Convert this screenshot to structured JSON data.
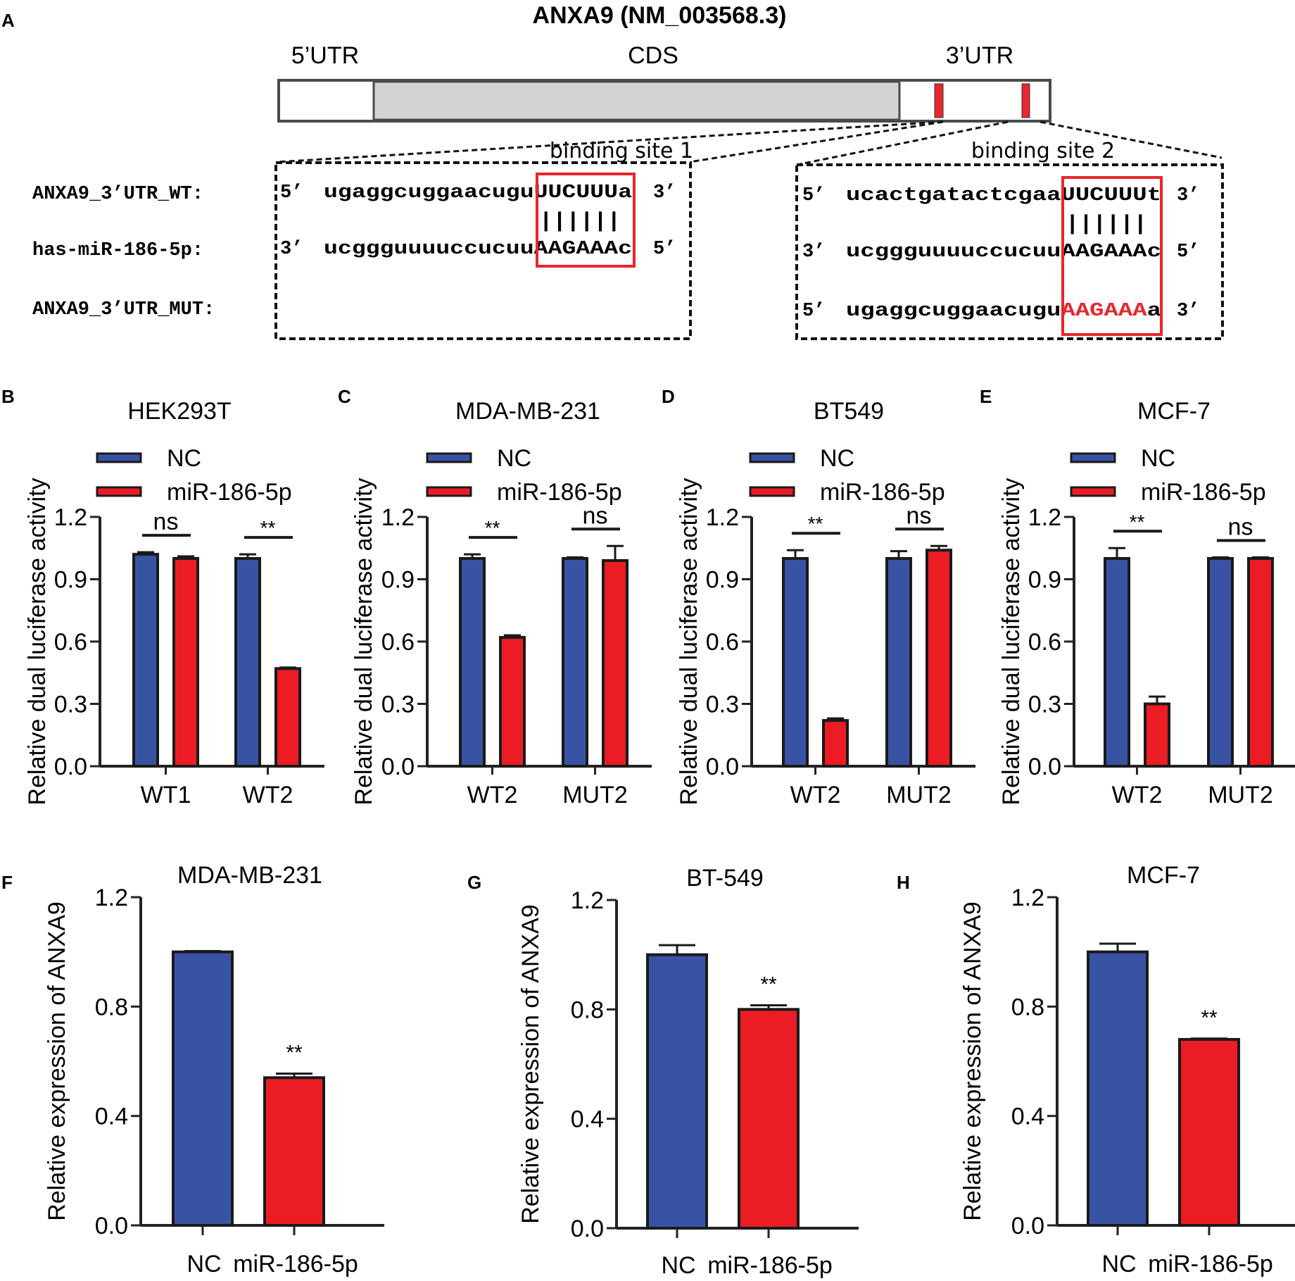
{
  "colors": {
    "nc": "#3953a4",
    "mir": "#ec1c24",
    "cds": "#d3d3d3",
    "highlight": "#e8262d"
  },
  "panel_a": {
    "letter": "A",
    "title": "ANXA9 (NM_003568.3)",
    "labels": {
      "utr5": "5’UTR",
      "cds": "CDS",
      "utr3": "3’UTR"
    },
    "site1_label": "binding site 1",
    "site2_label": "binding site 2",
    "row_labels": [
      "ANXA9_3’UTR_WT:",
      "has-miR-186-5p:",
      "ANXA9_3’UTR_MUT:"
    ],
    "site1": {
      "wt_seq": {
        "p5": "5’",
        "pre": "ugaggcuggaacugu",
        "core": "UUCUUU",
        "post": "a",
        "p3": "3’"
      },
      "pairs": "||||||",
      "mir_seq": {
        "p5": "3’",
        "pre": "ucggguuuuccucuu",
        "core": "AAGAAA",
        "post": "c",
        "p3": "5’"
      }
    },
    "site2": {
      "wt_seq": {
        "p5": "5’",
        "pre": "ucactgatactcgaa",
        "core": "UUCUUU",
        "post": "t",
        "p3": "3’"
      },
      "pairs": "||||||",
      "mir_seq": {
        "p5": "3’",
        "pre": "ucggguuuuccucuu",
        "core": "AAGAAA",
        "post": "c",
        "p3": "5’"
      },
      "mut_seq": {
        "p5": "5’",
        "pre": "ugaggcuggaacugu",
        "core": "AAGAAA",
        "post": "a",
        "p3": "3’"
      }
    }
  },
  "chart_data": [
    {
      "id": "B",
      "letter": "B",
      "type": "bar",
      "title": "HEK293T",
      "ylabel": "Relative dual luciferase activity",
      "xlabel": "",
      "categories": [
        "WT1",
        "WT2"
      ],
      "ylim": [
        0,
        1.2
      ],
      "yticks": [
        "0.0",
        "0.3",
        "0.6",
        "0.9",
        "1.2"
      ],
      "series": [
        {
          "name": "NC",
          "values": [
            1.02,
            1.0
          ],
          "errors": [
            0.01,
            0.02
          ]
        },
        {
          "name": "miR-186-5p",
          "values": [
            1.0,
            0.47
          ],
          "errors": [
            0.01,
            0.005
          ]
        }
      ],
      "legend": "top",
      "significance": [
        "ns",
        "**"
      ]
    },
    {
      "id": "C",
      "letter": "C",
      "type": "bar",
      "title": "MDA-MB-231",
      "ylabel": "Relative dual luciferase activity",
      "xlabel": "",
      "categories": [
        "WT2",
        "MUT2"
      ],
      "ylim": [
        0,
        1.2
      ],
      "yticks": [
        "0.0",
        "0.3",
        "0.6",
        "0.9",
        "1.2"
      ],
      "series": [
        {
          "name": "NC",
          "values": [
            1.0,
            1.0
          ],
          "errors": [
            0.02,
            0.005
          ]
        },
        {
          "name": "miR-186-5p",
          "values": [
            0.62,
            0.99
          ],
          "errors": [
            0.01,
            0.07
          ]
        }
      ],
      "legend": "top",
      "significance": [
        "**",
        "ns"
      ]
    },
    {
      "id": "D",
      "letter": "D",
      "type": "bar",
      "title": "BT549",
      "ylabel": "Relative dual luciferase activity",
      "xlabel": "",
      "categories": [
        "WT2",
        "MUT2"
      ],
      "ylim": [
        0,
        1.2
      ],
      "yticks": [
        "0.0",
        "0.3",
        "0.6",
        "0.9",
        "1.2"
      ],
      "series": [
        {
          "name": "NC",
          "values": [
            1.0,
            1.0
          ],
          "errors": [
            0.04,
            0.035
          ]
        },
        {
          "name": "miR-186-5p",
          "values": [
            0.22,
            1.04
          ],
          "errors": [
            0.01,
            0.02
          ]
        }
      ],
      "legend": "top",
      "significance": [
        "**",
        "ns"
      ]
    },
    {
      "id": "E",
      "letter": "E",
      "type": "bar",
      "title": "MCF-7",
      "ylabel": "Relative dual luciferase activity",
      "xlabel": "",
      "categories": [
        "WT2",
        "MUT2"
      ],
      "ylim": [
        0,
        1.2
      ],
      "yticks": [
        "0.0",
        "0.3",
        "0.6",
        "0.9",
        "1.2"
      ],
      "series": [
        {
          "name": "NC",
          "values": [
            1.0,
            1.0
          ],
          "errors": [
            0.05,
            0.005
          ]
        },
        {
          "name": "miR-186-5p",
          "values": [
            0.3,
            1.0
          ],
          "errors": [
            0.035,
            0.005
          ]
        }
      ],
      "legend": "top",
      "significance": [
        "**",
        "ns"
      ]
    },
    {
      "id": "F",
      "letter": "F",
      "type": "bar",
      "title": "MDA-MB-231",
      "ylabel": "Relative expression of ANXA9",
      "xlabel": "",
      "categories": [
        "NC",
        "miR-186-5p"
      ],
      "ylim": [
        0,
        1.2
      ],
      "yticks": [
        "0.0",
        "0.4",
        "0.8",
        "1.2"
      ],
      "values": [
        1.0,
        0.54
      ],
      "errors": [
        0.003,
        0.015
      ],
      "significance": [
        "",
        "**"
      ]
    },
    {
      "id": "G",
      "letter": "G",
      "type": "bar",
      "title": "BT-549",
      "ylabel": "Relative expression of ANXA9",
      "xlabel": "",
      "categories": [
        "NC",
        "miR-186-5p"
      ],
      "ylim": [
        0,
        1.2
      ],
      "yticks": [
        "0.0",
        "0.4",
        "0.8",
        "1.2"
      ],
      "values": [
        1.0,
        0.8
      ],
      "errors": [
        0.035,
        0.015
      ],
      "significance": [
        "",
        "**"
      ]
    },
    {
      "id": "H",
      "letter": "H",
      "type": "bar",
      "title": "MCF-7",
      "ylabel": "Relative expression of ANXA9",
      "xlabel": "",
      "categories": [
        "NC",
        "miR-186-5p"
      ],
      "ylim": [
        0,
        1.2
      ],
      "yticks": [
        "0.0",
        "0.4",
        "0.8",
        "1.2"
      ],
      "values": [
        1.0,
        0.68
      ],
      "errors": [
        0.03,
        0.003
      ],
      "significance": [
        "",
        "**"
      ]
    }
  ]
}
